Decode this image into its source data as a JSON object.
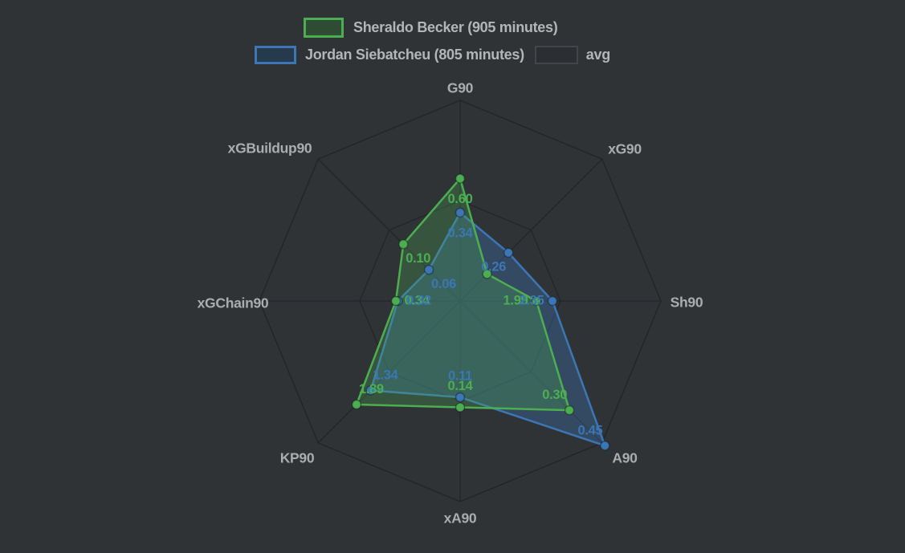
{
  "legend": {
    "becker": {
      "label": "Sheraldo Becker (905 minutes)"
    },
    "siebatcheu": {
      "label": "Jordan Siebatcheu (805 minutes)"
    },
    "avg": {
      "label": "avg"
    }
  },
  "colors": {
    "background": "#2f3336",
    "gridline": "#232629",
    "axis_text": "#aaacae",
    "legend_text": "#b3b5b7",
    "becker_green": "#4dae51",
    "siebatcheu_blue": "#3c76b4",
    "avg_swatch": "#2b2f31"
  },
  "chart_data": {
    "type": "radar",
    "axes": [
      "G90",
      "xG90",
      "Sh90",
      "A90",
      "xA90",
      "KP90",
      "xGChain90",
      "xGBuildup90"
    ],
    "grid": {
      "outer_ring": 1.0,
      "inner_ring": 0.5,
      "spokes": true
    },
    "series": [
      {
        "name": "Sheraldo Becker (905 minutes)",
        "color": "#4dae51",
        "fill": "rgba(77,174,81,0.28)",
        "values": [
          0.6,
          0.15,
          1.99,
          0.3,
          0.14,
          1.89,
          0.34,
          0.1
        ],
        "value_labels": [
          "0.60",
          "",
          "1.99",
          "0.30",
          "0.14",
          "1.89",
          "0.34",
          "0.10"
        ],
        "radius_fraction": [
          0.61,
          0.19,
          0.38,
          0.77,
          0.53,
          0.73,
          0.32,
          0.4
        ]
      },
      {
        "name": "Jordan Siebatcheu (805 minutes)",
        "color": "#3c76b4",
        "fill": "rgba(60,118,180,0.35)",
        "values": [
          0.34,
          0.26,
          2.35,
          0.45,
          0.11,
          1.34,
          0.32,
          0.06
        ],
        "value_labels": [
          "0.34",
          "0.26",
          "2.35",
          "0.45",
          "0.11",
          "1.34",
          "0.32",
          "0.06"
        ],
        "radius_fraction": [
          0.44,
          0.34,
          0.46,
          1.02,
          0.48,
          0.63,
          0.31,
          0.22
        ]
      },
      {
        "name": "avg",
        "color": "#3a3e40"
      }
    ]
  }
}
